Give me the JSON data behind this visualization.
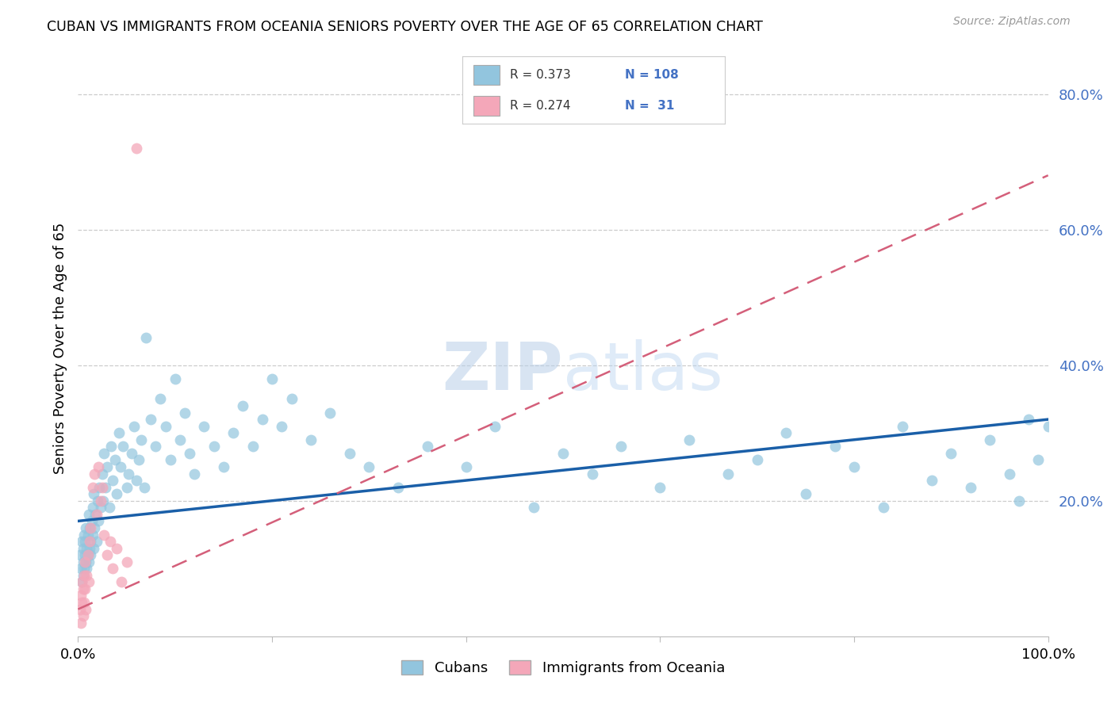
{
  "title": "CUBAN VS IMMIGRANTS FROM OCEANIA SENIORS POVERTY OVER THE AGE OF 65 CORRELATION CHART",
  "source": "Source: ZipAtlas.com",
  "ylabel": "Seniors Poverty Over the Age of 65",
  "xlim": [
    0.0,
    1.0
  ],
  "ylim": [
    0.0,
    0.85
  ],
  "color_blue": "#92c5de",
  "color_pink": "#f4a7b9",
  "line_blue": "#1a5fa8",
  "line_pink": "#d45f7a",
  "r_blue": 0.373,
  "n_blue": 108,
  "r_pink": 0.274,
  "n_pink": 31,
  "ytick_vals": [
    0.0,
    0.2,
    0.4,
    0.6,
    0.8
  ],
  "ytick_labels": [
    "",
    "20.0%",
    "40.0%",
    "60.0%",
    "80.0%"
  ],
  "xtick_vals": [
    0.0,
    0.2,
    0.4,
    0.6,
    0.8,
    1.0
  ],
  "xtick_labels": [
    "0.0%",
    "",
    "",
    "",
    "",
    "100.0%"
  ],
  "legend_label_blue": "Cubans",
  "legend_label_pink": "Immigrants from Oceania",
  "blue_line_x0": 0.0,
  "blue_line_y0": 0.17,
  "blue_line_x1": 1.0,
  "blue_line_y1": 0.32,
  "pink_line_x0": 0.0,
  "pink_line_y0": 0.04,
  "pink_line_x1": 1.0,
  "pink_line_y1": 0.68,
  "cubans_x": [
    0.002,
    0.003,
    0.004,
    0.004,
    0.005,
    0.005,
    0.005,
    0.006,
    0.006,
    0.007,
    0.007,
    0.008,
    0.008,
    0.009,
    0.009,
    0.01,
    0.01,
    0.011,
    0.011,
    0.012,
    0.012,
    0.013,
    0.013,
    0.014,
    0.015,
    0.015,
    0.016,
    0.016,
    0.017,
    0.018,
    0.019,
    0.02,
    0.021,
    0.022,
    0.023,
    0.025,
    0.026,
    0.027,
    0.028,
    0.03,
    0.032,
    0.034,
    0.036,
    0.038,
    0.04,
    0.042,
    0.044,
    0.046,
    0.05,
    0.052,
    0.055,
    0.058,
    0.06,
    0.063,
    0.065,
    0.068,
    0.07,
    0.075,
    0.08,
    0.085,
    0.09,
    0.095,
    0.1,
    0.105,
    0.11,
    0.115,
    0.12,
    0.13,
    0.14,
    0.15,
    0.16,
    0.17,
    0.18,
    0.19,
    0.2,
    0.21,
    0.22,
    0.24,
    0.26,
    0.28,
    0.3,
    0.33,
    0.36,
    0.4,
    0.43,
    0.47,
    0.5,
    0.53,
    0.56,
    0.6,
    0.63,
    0.67,
    0.7,
    0.73,
    0.75,
    0.78,
    0.8,
    0.83,
    0.85,
    0.88,
    0.9,
    0.92,
    0.94,
    0.96,
    0.97,
    0.98,
    0.99,
    1.0
  ],
  "cubans_y": [
    0.12,
    0.1,
    0.08,
    0.14,
    0.11,
    0.13,
    0.09,
    0.15,
    0.1,
    0.12,
    0.14,
    0.11,
    0.16,
    0.13,
    0.1,
    0.12,
    0.15,
    0.11,
    0.18,
    0.13,
    0.16,
    0.14,
    0.12,
    0.17,
    0.15,
    0.19,
    0.13,
    0.21,
    0.16,
    0.18,
    0.14,
    0.2,
    0.17,
    0.22,
    0.19,
    0.24,
    0.2,
    0.27,
    0.22,
    0.25,
    0.19,
    0.28,
    0.23,
    0.26,
    0.21,
    0.3,
    0.25,
    0.28,
    0.22,
    0.24,
    0.27,
    0.31,
    0.23,
    0.26,
    0.29,
    0.22,
    0.44,
    0.32,
    0.28,
    0.35,
    0.31,
    0.26,
    0.38,
    0.29,
    0.33,
    0.27,
    0.24,
    0.31,
    0.28,
    0.25,
    0.3,
    0.34,
    0.28,
    0.32,
    0.38,
    0.31,
    0.35,
    0.29,
    0.33,
    0.27,
    0.25,
    0.22,
    0.28,
    0.25,
    0.31,
    0.19,
    0.27,
    0.24,
    0.28,
    0.22,
    0.29,
    0.24,
    0.26,
    0.3,
    0.21,
    0.28,
    0.25,
    0.19,
    0.31,
    0.23,
    0.27,
    0.22,
    0.29,
    0.24,
    0.2,
    0.32,
    0.26,
    0.31
  ],
  "oceania_x": [
    0.002,
    0.003,
    0.003,
    0.004,
    0.004,
    0.005,
    0.005,
    0.006,
    0.006,
    0.007,
    0.007,
    0.008,
    0.009,
    0.01,
    0.011,
    0.012,
    0.013,
    0.015,
    0.017,
    0.019,
    0.021,
    0.023,
    0.025,
    0.027,
    0.03,
    0.033,
    0.036,
    0.04,
    0.045,
    0.05,
    0.06
  ],
  "oceania_y": [
    0.04,
    0.06,
    0.02,
    0.05,
    0.08,
    0.07,
    0.03,
    0.09,
    0.05,
    0.11,
    0.07,
    0.04,
    0.09,
    0.12,
    0.08,
    0.14,
    0.16,
    0.22,
    0.24,
    0.18,
    0.25,
    0.2,
    0.22,
    0.15,
    0.12,
    0.14,
    0.1,
    0.13,
    0.08,
    0.11,
    0.72
  ]
}
